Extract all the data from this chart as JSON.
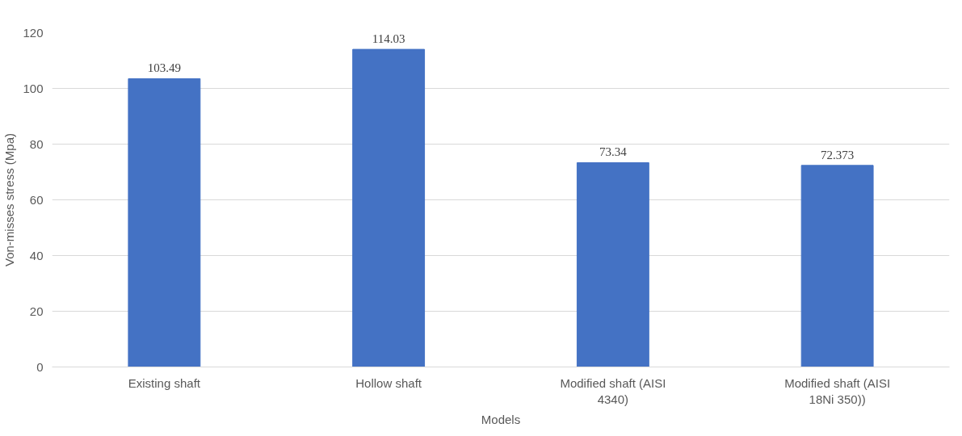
{
  "chart_data": {
    "type": "bar",
    "xlabel": "Models",
    "ylabel": "Von-misses stress (Mpa)",
    "categories": [
      "Existing shaft",
      "Hollow shaft",
      "Modified shaft (AISI 4340)",
      "Modified shaft (AISI 18Ni 350))"
    ],
    "values": [
      103.49,
      114.03,
      73.34,
      72.373
    ],
    "color": "#4472c4",
    "ylim": [
      0,
      120
    ],
    "yticks": [
      0,
      20,
      40,
      60,
      80,
      100,
      120
    ],
    "grid": "y",
    "data_labels": true
  }
}
